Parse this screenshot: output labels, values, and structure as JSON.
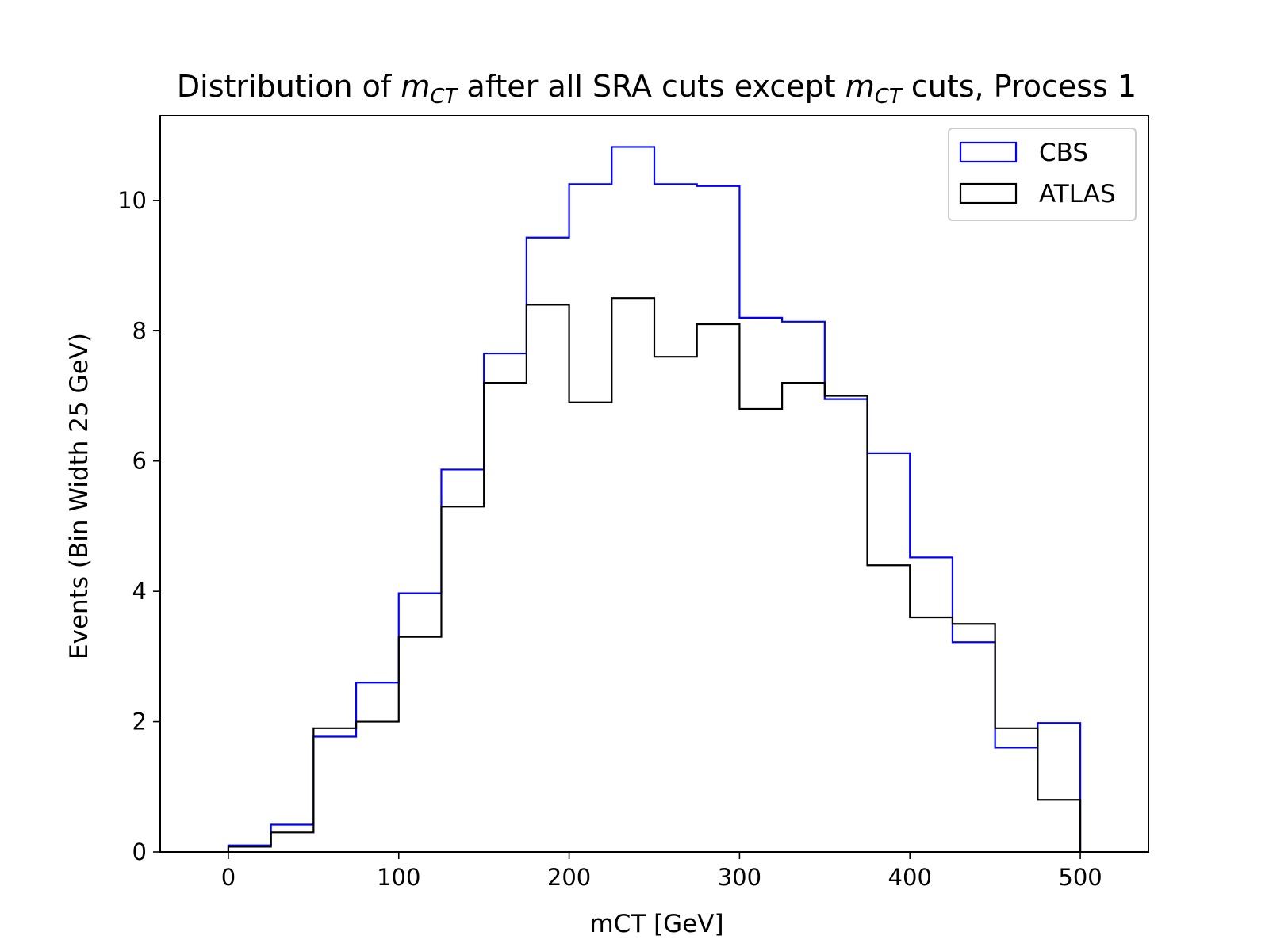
{
  "chart_data": {
    "type": "histogram-step",
    "title_parts": {
      "prefix": "Distribution of ",
      "var1_main": "m",
      "var1_sub": "CT",
      "middle": " after all SRA cuts except ",
      "var2_main": "m",
      "var2_sub": "CT",
      "suffix": " cuts, Process 1"
    },
    "xlabel": "mCT [GeV]",
    "ylabel": "Events (Bin Width 25 GeV)",
    "xlim": [
      -40,
      540
    ],
    "ylim": [
      0,
      11.3
    ],
    "xticks": [
      0,
      100,
      200,
      300,
      400,
      500
    ],
    "yticks": [
      0,
      2,
      4,
      6,
      8,
      10
    ],
    "xtick_labels": [
      "0",
      "100",
      "200",
      "300",
      "400",
      "500"
    ],
    "ytick_labels": [
      "0",
      "2",
      "4",
      "6",
      "8",
      "10"
    ],
    "bin_edges": [
      0,
      25,
      50,
      75,
      100,
      125,
      150,
      175,
      200,
      225,
      250,
      275,
      300,
      325,
      350,
      375,
      400,
      425,
      450,
      475,
      500
    ],
    "series": [
      {
        "name": "CBS",
        "color": "#0000ff",
        "values": [
          0.1,
          0.42,
          1.77,
          2.6,
          3.97,
          5.87,
          7.65,
          9.43,
          10.25,
          10.82,
          10.25,
          10.22,
          8.2,
          8.14,
          6.95,
          6.12,
          4.52,
          3.22,
          1.6,
          1.98
        ]
      },
      {
        "name": "ATLAS",
        "color": "#000000",
        "values": [
          0.08,
          0.3,
          1.9,
          2.0,
          3.3,
          5.3,
          7.2,
          8.4,
          6.9,
          8.5,
          7.6,
          8.1,
          6.8,
          7.2,
          7.0,
          4.4,
          3.6,
          3.5,
          1.9,
          0.8
        ]
      }
    ],
    "legend_position": "top-right",
    "grid": false
  }
}
